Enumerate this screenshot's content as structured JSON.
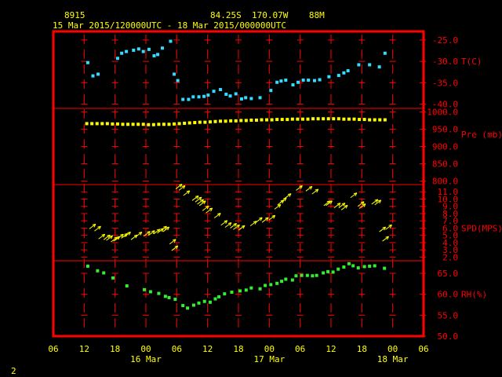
{
  "header": {
    "station_id": "8915",
    "location": "84.25S  170.07W    88M",
    "period": "15 Mar 2015/120000UTC - 18 Mar 2015/000000UTC"
  },
  "page_number": "2",
  "colors": {
    "frame": "#ff0000",
    "label": "#ff0000",
    "header_text": "#ffff00",
    "axis_text": "#ffff00",
    "temperature": "#33ddff",
    "pressure": "#ffff00",
    "wind": "#ffff00",
    "humidity": "#33ee33",
    "background": "#000000"
  },
  "chart_data": {
    "type": "scatter",
    "x_units": "hours since start of 15 Mar 2015 UTC",
    "x_axis": {
      "range": [
        30,
        102
      ],
      "ticks": [
        {
          "hour": 30,
          "label": "06"
        },
        {
          "hour": 36,
          "label": "12"
        },
        {
          "hour": 42,
          "label": "18"
        },
        {
          "hour": 48,
          "label": "00"
        },
        {
          "hour": 54,
          "label": "06"
        },
        {
          "hour": 60,
          "label": "12"
        },
        {
          "hour": 66,
          "label": "18"
        },
        {
          "hour": 72,
          "label": "00"
        },
        {
          "hour": 78,
          "label": "06"
        },
        {
          "hour": 84,
          "label": "12"
        },
        {
          "hour": 90,
          "label": "18"
        },
        {
          "hour": 96,
          "label": "00"
        },
        {
          "hour": 102,
          "label": "06"
        }
      ],
      "day_labels": [
        {
          "hour": 48,
          "label": "16 Mar"
        },
        {
          "hour": 72,
          "label": "17 Mar"
        },
        {
          "hour": 96,
          "label": "18 Mar"
        }
      ]
    },
    "panels": [
      {
        "id": "temperature",
        "label": "T(C)",
        "ylim": [
          -41,
          -23
        ],
        "label_value": -30,
        "ticks": [
          {
            "value": -25,
            "label": "-25.0"
          },
          {
            "value": -30,
            "label": "-30.0"
          },
          {
            "value": -35,
            "label": "-35.0"
          },
          {
            "value": -40,
            "label": "-40.0"
          }
        ],
        "x": [
          36.7,
          37.7,
          38.7,
          42.5,
          43.3,
          44.2,
          45.6,
          46.6,
          47.5,
          48.6,
          49.6,
          50.3,
          51.2,
          52.8,
          53.5,
          54.2,
          55.2,
          56.3,
          57.2,
          58.3,
          59.3,
          60.1,
          61.2,
          62.5,
          63.6,
          64.4,
          65.5,
          66.6,
          67.4,
          68.5,
          70.2,
          72.3,
          73.5,
          74.3,
          75.2,
          76.6,
          77.6,
          78.6,
          79.6,
          80.8,
          81.8,
          83.6,
          85.5,
          86.5,
          87.3,
          89.4,
          91.5,
          93.4,
          94.5
        ],
        "values": [
          -30.3,
          -33.4,
          -33.0,
          -29.3,
          -28.1,
          -27.7,
          -27.4,
          -27.1,
          -27.7,
          -27.2,
          -28.7,
          -28.4,
          -26.9,
          -25.3,
          -33.0,
          -34.5,
          -38.9,
          -38.9,
          -38.3,
          -38.3,
          -38.2,
          -37.9,
          -37.0,
          -36.6,
          -37.7,
          -38.1,
          -37.6,
          -38.8,
          -38.5,
          -38.7,
          -38.5,
          -36.8,
          -34.9,
          -34.6,
          -34.4,
          -35.5,
          -34.9,
          -34.4,
          -34.4,
          -34.5,
          -34.3,
          -33.6,
          -33.3,
          -32.7,
          -32.2,
          -30.8,
          -30.8,
          -31.3,
          -28.1
        ]
      },
      {
        "id": "pressure",
        "label": "Pre (mb)",
        "ylim": [
          790,
          1010
        ],
        "label_value": 935,
        "ticks": [
          {
            "value": 1000,
            "label": "1000.0"
          },
          {
            "value": 950,
            "label": "950.0"
          },
          {
            "value": 900,
            "label": "900.0"
          },
          {
            "value": 850,
            "label": "850.0"
          },
          {
            "value": 800,
            "label": "800.0"
          }
        ],
        "x": [
          36.5,
          37.5,
          38.5,
          39.5,
          40.5,
          41.5,
          42.5,
          43.5,
          44.5,
          45.5,
          46.5,
          47.5,
          48.5,
          49.5,
          50.5,
          51.5,
          52.5,
          53.5,
          54.5,
          55.5,
          56.5,
          57.5,
          58.5,
          59.5,
          60.5,
          61.5,
          62.5,
          63.5,
          64.5,
          65.5,
          66.5,
          67.5,
          68.5,
          69.5,
          70.5,
          71.5,
          72.5,
          73.5,
          74.5,
          75.5,
          76.5,
          77.5,
          78.5,
          79.5,
          80.5,
          81.5,
          82.5,
          83.5,
          84.5,
          85.5,
          86.5,
          87.5,
          88.5,
          89.5,
          90.5,
          91.5,
          92.5,
          93.5,
          94.5
        ],
        "values": [
          966,
          966,
          966,
          966,
          966,
          965,
          965,
          964,
          964,
          964,
          964,
          964,
          963,
          963,
          964,
          964,
          964,
          965,
          966,
          967,
          968,
          969,
          970,
          970,
          971,
          972,
          973,
          973,
          974,
          974,
          975,
          975,
          976,
          976,
          977,
          977,
          977,
          978,
          978,
          978,
          979,
          979,
          979,
          979,
          980,
          980,
          980,
          980,
          980,
          980,
          979,
          979,
          979,
          978,
          978,
          977,
          977,
          977,
          977
        ]
      },
      {
        "id": "wind",
        "label": "SPD(MPS)",
        "ylim": [
          1.5,
          12
        ],
        "label_value": 6,
        "ticks": [
          {
            "value": 11,
            "label": "11.0"
          },
          {
            "value": 10,
            "label": "10.0"
          },
          {
            "value": 9,
            "label": "9.0"
          },
          {
            "value": 8,
            "label": "8.0"
          },
          {
            "value": 7,
            "label": "7.0"
          },
          {
            "value": 6,
            "label": "6.0"
          },
          {
            "value": 5,
            "label": "5.0"
          },
          {
            "value": 4,
            "label": "4.0"
          },
          {
            "value": 3,
            "label": "3.0"
          },
          {
            "value": 2,
            "label": "2.0"
          }
        ],
        "x": [
          37.0,
          38.0,
          38.8,
          39.8,
          40.3,
          41.2,
          41.7,
          42.4,
          43.2,
          43.8,
          45.1,
          46.0,
          47.6,
          48.5,
          49.5,
          50.2,
          50.8,
          51.3,
          52.6,
          53.0,
          53.8,
          54.4,
          55.3,
          57.0,
          57.6,
          58.0,
          58.4,
          59.0,
          59.7,
          61.3,
          62.6,
          63.4,
          64.4,
          65.0,
          66.0,
          68.3,
          69.4,
          70.6,
          71.9,
          73.0,
          73.6,
          74.1,
          75.0,
          77.2,
          79.1,
          80.3,
          82.6,
          83.0,
          84.6,
          85.5,
          86.0,
          87.8,
          89.2,
          89.5,
          91.9,
          92.5,
          93.4,
          94.0,
          94.6
        ],
        "values": [
          5.9,
          5.6,
          4.5,
          4.4,
          4.3,
          4.1,
          4.2,
          4.5,
          4.6,
          4.8,
          4.4,
          4.8,
          4.9,
          5.0,
          5.2,
          5.3,
          5.6,
          5.5,
          3.8,
          2.9,
          11.4,
          11.2,
          10.5,
          9.8,
          9.6,
          9.3,
          9.1,
          8.4,
          8.1,
          7.4,
          6.4,
          6.1,
          6.0,
          5.8,
          5.7,
          6.3,
          6.8,
          6.8,
          7.1,
          8.6,
          9.2,
          9.5,
          10.1,
          11.2,
          11.1,
          10.7,
          9.1,
          9.1,
          8.8,
          8.8,
          8.5,
          10.2,
          9.0,
          8.7,
          9.3,
          9.2,
          5.5,
          4.2,
          5.8
        ]
      },
      {
        "id": "humidity",
        "label": "RH(%)",
        "ylim": [
          50,
          68
        ],
        "label_value": 60,
        "ticks": [
          {
            "value": 65,
            "label": "65.0"
          },
          {
            "value": 60,
            "label": "60.0"
          },
          {
            "value": 55,
            "label": "55.0"
          },
          {
            "value": 50,
            "label": "50.0"
          }
        ],
        "x": [
          36.7,
          38.6,
          39.8,
          41.6,
          44.3,
          47.7,
          48.9,
          50.5,
          51.8,
          52.5,
          53.7,
          55.2,
          56.1,
          57.3,
          58.3,
          59.4,
          60.5,
          61.5,
          62.2,
          63.3,
          64.7,
          66.3,
          67.5,
          68.5,
          70.2,
          71.2,
          72.3,
          73.5,
          74.4,
          75.2,
          76.5,
          77.2,
          78.3,
          79.4,
          80.4,
          81.2,
          82.5,
          83.4,
          84.4,
          85.4,
          86.5,
          87.5,
          88.3,
          89.3,
          90.5,
          91.5,
          92.5,
          94.4
        ],
        "values": [
          66.7,
          65.6,
          65.1,
          63.9,
          62.0,
          61.1,
          60.6,
          60.2,
          59.5,
          59.2,
          58.8,
          57.3,
          56.7,
          57.4,
          57.9,
          58.3,
          58.1,
          58.9,
          59.4,
          60.1,
          60.5,
          60.8,
          61.0,
          61.5,
          61.3,
          62.1,
          62.3,
          62.6,
          63.1,
          63.6,
          63.4,
          64.4,
          64.5,
          64.5,
          64.4,
          64.5,
          65.1,
          65.4,
          65.3,
          66.0,
          66.5,
          67.3,
          66.8,
          66.3,
          66.6,
          66.7,
          66.8,
          66.2
        ]
      }
    ]
  }
}
